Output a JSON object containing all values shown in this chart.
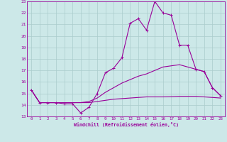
{
  "xlabel": "Windchill (Refroidissement éolien,°C)",
  "background_color": "#cce8e8",
  "grid_color": "#aacccc",
  "line_color": "#990099",
  "xlim": [
    -0.5,
    23.5
  ],
  "ylim": [
    13,
    23
  ],
  "yticks": [
    13,
    14,
    15,
    16,
    17,
    18,
    19,
    20,
    21,
    22,
    23
  ],
  "xticks": [
    0,
    1,
    2,
    3,
    4,
    5,
    6,
    7,
    8,
    9,
    10,
    11,
    12,
    13,
    14,
    15,
    16,
    17,
    18,
    19,
    20,
    21,
    22,
    23
  ],
  "line1_x": [
    0,
    1,
    2,
    3,
    4,
    5,
    6,
    7,
    8,
    9,
    10,
    11,
    12,
    13,
    14,
    15,
    16,
    17,
    18,
    19,
    20,
    21,
    22,
    23
  ],
  "line1_y": [
    15.3,
    14.2,
    14.2,
    14.2,
    14.1,
    14.1,
    13.3,
    13.8,
    15.0,
    16.8,
    17.2,
    18.1,
    21.1,
    21.5,
    20.5,
    23.0,
    22.0,
    21.8,
    19.2,
    19.2,
    17.1,
    16.9,
    15.5,
    14.8
  ],
  "line2_x": [
    0,
    1,
    2,
    3,
    4,
    5,
    6,
    7,
    8,
    9,
    10,
    11,
    12,
    13,
    14,
    15,
    16,
    17,
    18,
    19,
    20,
    21,
    22,
    23
  ],
  "line2_y": [
    15.3,
    14.2,
    14.2,
    14.2,
    14.2,
    14.2,
    14.2,
    14.3,
    14.6,
    15.1,
    15.5,
    15.9,
    16.2,
    16.5,
    16.7,
    17.0,
    17.3,
    17.4,
    17.5,
    17.3,
    17.1,
    16.9,
    15.5,
    14.8
  ],
  "line3_x": [
    0,
    1,
    2,
    3,
    4,
    5,
    6,
    7,
    8,
    9,
    10,
    11,
    12,
    13,
    14,
    15,
    16,
    17,
    18,
    19,
    20,
    21,
    22,
    23
  ],
  "line3_y": [
    15.3,
    14.2,
    14.2,
    14.2,
    14.2,
    14.2,
    14.2,
    14.2,
    14.3,
    14.4,
    14.5,
    14.55,
    14.6,
    14.65,
    14.7,
    14.7,
    14.7,
    14.72,
    14.75,
    14.75,
    14.75,
    14.7,
    14.65,
    14.6
  ]
}
